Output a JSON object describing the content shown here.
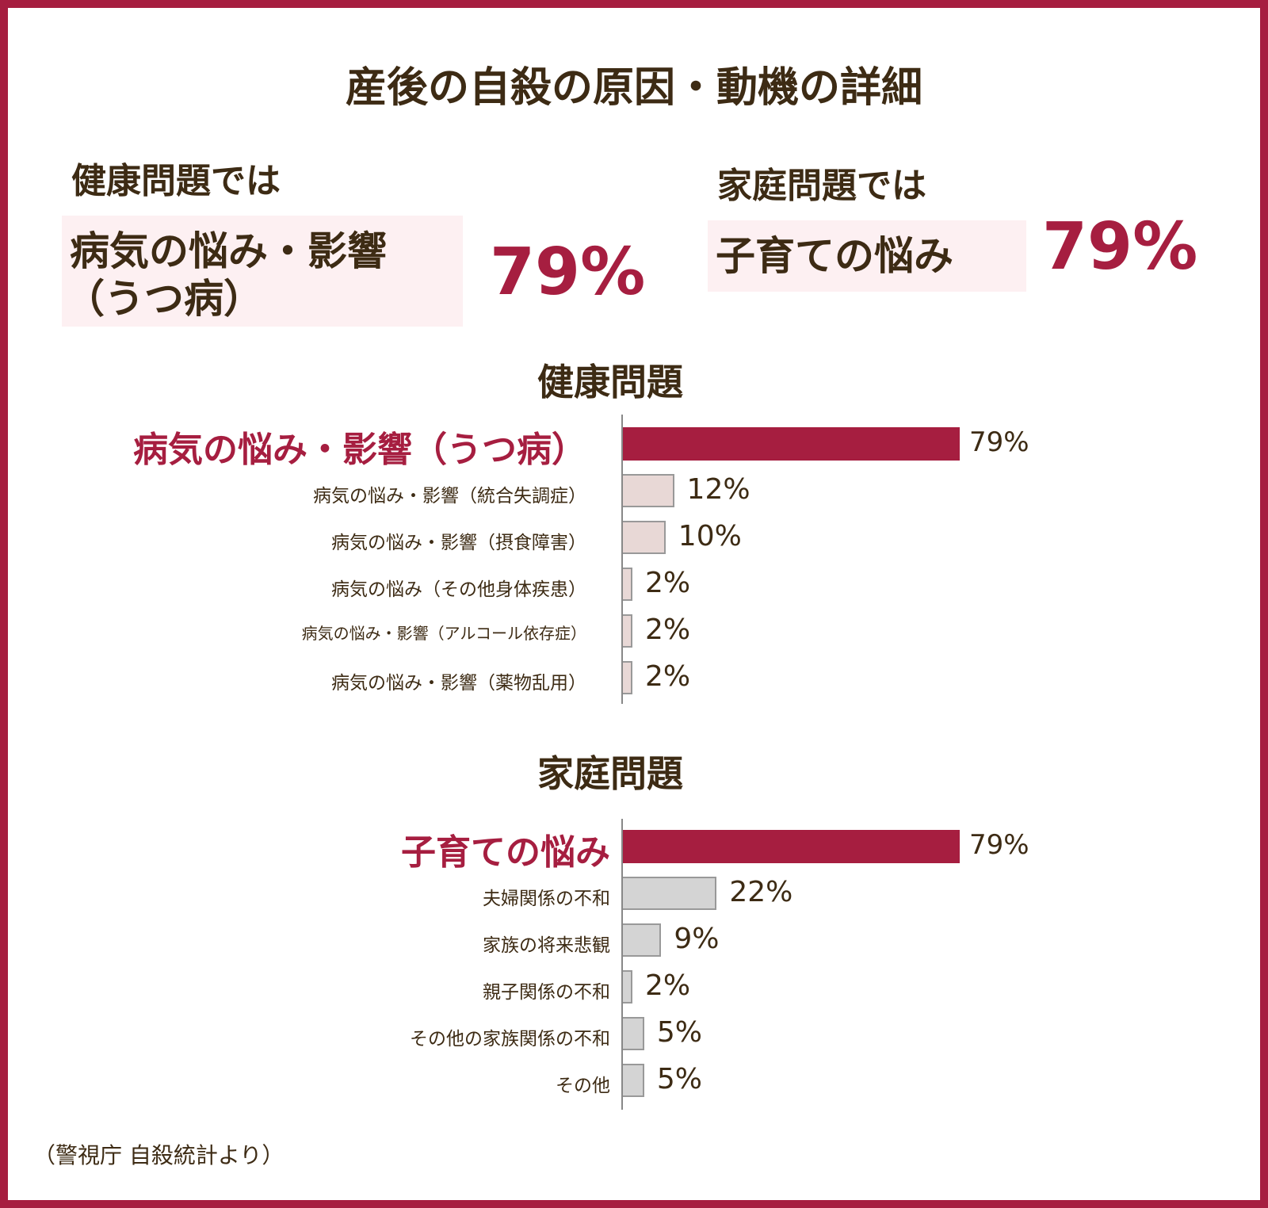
{
  "title": "産後の自殺の原因・動機の詳細",
  "summary": {
    "health": {
      "lead": "健康問題では",
      "highlight_line1": "病気の悩み・影響",
      "highlight_line2": "（うつ病）",
      "percent": "79%"
    },
    "family": {
      "lead": "家庭問題では",
      "highlight": "子育ての悩み",
      "percent": "79%"
    }
  },
  "colors": {
    "accent": "#a61e40",
    "text": "#3d2b14",
    "highlight_bg": "#fdf0f2",
    "health_bar": "#e8d8d6",
    "family_bar": "#d4d4d4"
  },
  "chart_data": [
    {
      "type": "bar",
      "orientation": "horizontal",
      "title": "健康問題",
      "categories": [
        "病気の悩み・影響（うつ病）",
        "病気の悩み・影響（統合失調症）",
        "病気の悩み・影響（摂食障害）",
        "病気の悩み（その他身体疾患）",
        "病気の悩み・影響（アルコール依存症）",
        "病気の悩み・影響（薬物乱用）"
      ],
      "values": [
        79,
        12,
        10,
        2,
        2,
        2
      ],
      "labels": [
        "79%",
        "12%",
        "10%",
        "2%",
        "2%",
        "2%"
      ],
      "unit": "%"
    },
    {
      "type": "bar",
      "orientation": "horizontal",
      "title": "家庭問題",
      "categories": [
        "子育ての悩み",
        "夫婦関係の不和",
        "家族の将来悲観",
        "親子関係の不和",
        "その他の家族関係の不和",
        "その他"
      ],
      "values": [
        79,
        22,
        9,
        2,
        5,
        5
      ],
      "labels": [
        "79%",
        "22%",
        "9%",
        "2%",
        "5%",
        "5%"
      ],
      "unit": "%"
    }
  ],
  "source": "（警視庁 自殺統計より）"
}
